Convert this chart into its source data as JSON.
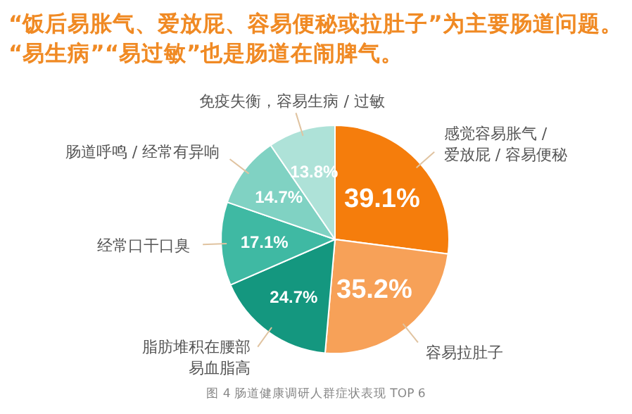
{
  "chart_data": {
    "type": "pie",
    "title": "“饭后易胀气、爱放屁、容易便秘或拉肚子”为主要肠道问题。\n“易生病”“易过敏”也是肠道在闹脾气。",
    "categories": [
      "感觉容易胀气 /\n爱放屁 / 容易便秘",
      "容易拉肚子",
      "脂肪堆积在腰部易血脂高",
      "经常口干口臭",
      "肠道呼鸣 / 经常有异响",
      "免疫失衡，容易生病 / 过敏"
    ],
    "values": [
      39.1,
      35.2,
      24.7,
      17.1,
      14.7,
      13.8
    ],
    "value_labels": [
      "39.1%",
      "35.2%",
      "24.7%",
      "17.1%",
      "14.7%",
      "13.8%"
    ],
    "colors": [
      "#f57d0c",
      "#f7a158",
      "#14977f",
      "#3fb9a3",
      "#80d2c3",
      "#aee2d8"
    ],
    "annotations": [
      "图 4 肠道健康调研人群症状表现 TOP 6"
    ]
  }
}
